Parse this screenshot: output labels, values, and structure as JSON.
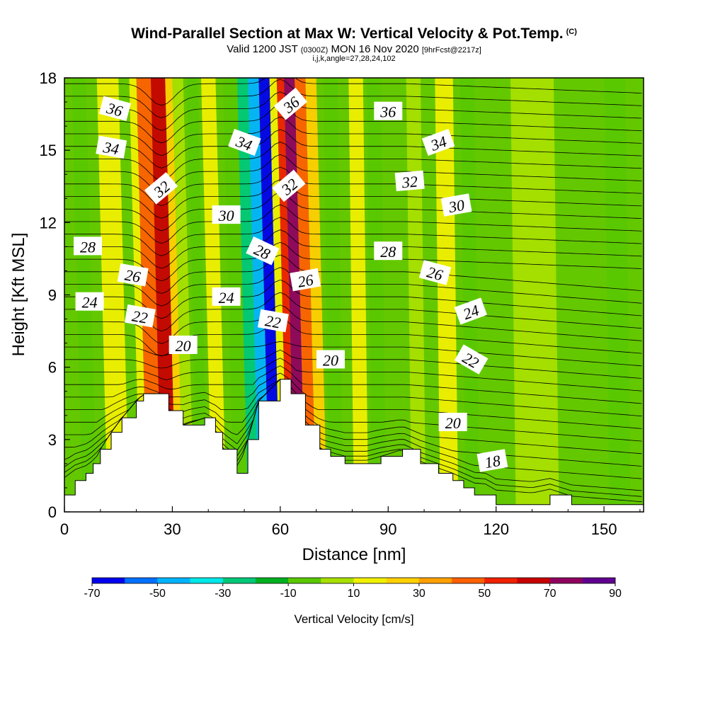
{
  "header": {
    "title": "Wind-Parallel Section at Max W: Vertical Velocity & Pot.Temp.",
    "title_mark": "(C)",
    "valid_prefix": "Valid 1200 JST",
    "valid_zulu": "(0300Z)",
    "valid_date": "MON 16 Nov 2020",
    "forecast": "[9hrFcst@2217z]",
    "indices": "i,j,k,angle=27,28,24,102"
  },
  "chart_data": {
    "type": "heatmap",
    "xlabel": "Distance [nm]",
    "ylabel": "Height [Kft MSL]",
    "xlim": [
      0,
      161
    ],
    "ylim": [
      0,
      18
    ],
    "x_ticks": [
      "0",
      "30",
      "60",
      "90",
      "120",
      "150"
    ],
    "y_ticks": [
      "0",
      "3",
      "6",
      "9",
      "12",
      "15",
      "18"
    ],
    "colorbar": {
      "label": "Vertical Velocity [cm/s]",
      "tick_labels": [
        "-70",
        "-50",
        "-30",
        "-10",
        "10",
        "30",
        "50",
        "70",
        "90"
      ],
      "levels": [
        -70,
        -60,
        -50,
        -40,
        -30,
        -20,
        -10,
        0,
        10,
        20,
        30,
        40,
        50,
        60,
        70,
        80,
        90
      ],
      "colors": [
        "#0000ee",
        "#0070ff",
        "#00b4ff",
        "#00e8e8",
        "#00c878",
        "#00b020",
        "#5ac800",
        "#a8e000",
        "#f0f000",
        "#ffd000",
        "#ffa000",
        "#ff6000",
        "#f02000",
        "#c80000",
        "#900060",
        "#600090"
      ]
    },
    "background_level_color": "#64c800",
    "vertical_velocity_bands": [
      {
        "x": [
          2,
          6
        ],
        "w": -10
      },
      {
        "x": [
          9,
          15
        ],
        "w": 15
      },
      {
        "x": [
          18,
          20
        ],
        "w": 10
      },
      {
        "x": [
          20,
          24
        ],
        "w": 40
      },
      {
        "x": [
          24,
          28
        ],
        "w": 60
      },
      {
        "x": [
          28,
          30
        ],
        "w": 25
      },
      {
        "x": [
          30,
          33
        ],
        "w": 5
      },
      {
        "x": [
          34,
          37
        ],
        "w": -10
      },
      {
        "x": [
          38,
          42
        ],
        "w": 15
      },
      {
        "x": [
          44,
          48
        ],
        "w": -10
      },
      {
        "x": [
          48,
          51
        ],
        "w": -30
      },
      {
        "x": [
          51,
          54
        ],
        "w": -50
      },
      {
        "x": [
          54,
          57
        ],
        "w": -70
      },
      {
        "x": [
          57,
          59
        ],
        "w": 10
      },
      {
        "x": [
          59,
          61
        ],
        "w": 50
      },
      {
        "x": [
          61,
          64
        ],
        "w": 70
      },
      {
        "x": [
          64,
          67
        ],
        "w": 45
      },
      {
        "x": [
          67,
          70
        ],
        "w": 20
      },
      {
        "x": [
          72,
          76
        ],
        "w": -10
      },
      {
        "x": [
          79,
          83
        ],
        "w": 10
      },
      {
        "x": [
          84,
          88
        ],
        "w": -10
      },
      {
        "x": [
          95,
          99
        ],
        "w": 5
      },
      {
        "x": [
          103,
          108
        ],
        "w": 15
      },
      {
        "x": [
          110,
          114
        ],
        "w": -10
      },
      {
        "x": [
          124,
          136
        ],
        "w": 5
      },
      {
        "x": [
          150,
          156
        ],
        "w": -5
      }
    ],
    "terrain": {
      "x": [
        0,
        3,
        6,
        8,
        10,
        13,
        16,
        20,
        22,
        26,
        29,
        33,
        39,
        42,
        44,
        48,
        51,
        54,
        60,
        63,
        67,
        71,
        74,
        78,
        84,
        88,
        94,
        99,
        104,
        108,
        111,
        114,
        117,
        120,
        124,
        130,
        135,
        141,
        150,
        161
      ],
      "height": [
        0.7,
        1.3,
        1.6,
        2.0,
        2.6,
        3.3,
        3.9,
        4.6,
        4.9,
        4.9,
        4.2,
        3.6,
        3.9,
        3.3,
        2.6,
        1.6,
        3.0,
        4.6,
        5.5,
        4.9,
        3.6,
        2.6,
        2.3,
        2.0,
        2.0,
        2.3,
        2.6,
        2.0,
        1.6,
        1.3,
        1.0,
        0.7,
        0.7,
        0.3,
        0.3,
        0.3,
        0.7,
        0.3,
        0.3,
        0.3
      ]
    },
    "potential_temperature_labels": [
      {
        "text": "36",
        "x": 14,
        "y": 16.7,
        "angle": 15
      },
      {
        "text": "34",
        "x": 13,
        "y": 15.1,
        "angle": 10
      },
      {
        "text": "32",
        "x": 27,
        "y": 13.4,
        "angle": -40
      },
      {
        "text": "30",
        "x": 45,
        "y": 12.3,
        "angle": 0
      },
      {
        "text": "28",
        "x": 6.5,
        "y": 11.0,
        "angle": 0
      },
      {
        "text": "26",
        "x": 19,
        "y": 9.8,
        "angle": 10
      },
      {
        "text": "24",
        "x": 7,
        "y": 8.7,
        "angle": 0
      },
      {
        "text": "22",
        "x": 21,
        "y": 8.1,
        "angle": 10
      },
      {
        "text": "20",
        "x": 33,
        "y": 6.9,
        "angle": 0
      },
      {
        "text": "34",
        "x": 50,
        "y": 15.3,
        "angle": 20
      },
      {
        "text": "28",
        "x": 55,
        "y": 10.8,
        "angle": 25
      },
      {
        "text": "24",
        "x": 45,
        "y": 8.9,
        "angle": 0
      },
      {
        "text": "22",
        "x": 58,
        "y": 7.9,
        "angle": 10
      },
      {
        "text": "36",
        "x": 63,
        "y": 16.9,
        "angle": -40
      },
      {
        "text": "32",
        "x": 62.5,
        "y": 13.5,
        "angle": -40
      },
      {
        "text": "26",
        "x": 67,
        "y": 9.6,
        "angle": -10
      },
      {
        "text": "20",
        "x": 74,
        "y": 6.3,
        "angle": 0
      },
      {
        "text": "36",
        "x": 90,
        "y": 16.6,
        "angle": 0
      },
      {
        "text": "34",
        "x": 104,
        "y": 15.3,
        "angle": -20
      },
      {
        "text": "32",
        "x": 96,
        "y": 13.7,
        "angle": -5
      },
      {
        "text": "30",
        "x": 109,
        "y": 12.7,
        "angle": -10
      },
      {
        "text": "28",
        "x": 90,
        "y": 10.8,
        "angle": 0
      },
      {
        "text": "26",
        "x": 103,
        "y": 9.9,
        "angle": 15
      },
      {
        "text": "24",
        "x": 113,
        "y": 8.3,
        "angle": -20
      },
      {
        "text": "22",
        "x": 113,
        "y": 6.3,
        "angle": 30
      },
      {
        "text": "20",
        "x": 108,
        "y": 3.7,
        "angle": 0
      },
      {
        "text": "18",
        "x": 119,
        "y": 2.1,
        "angle": -10
      }
    ]
  }
}
